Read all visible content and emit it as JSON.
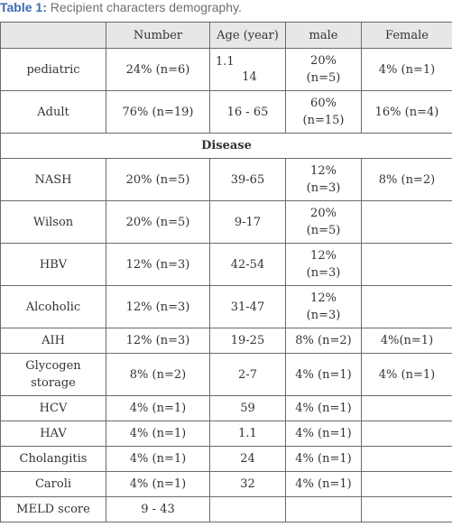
{
  "caption": {
    "label": "Table 1:",
    "text": " Recipient characters demography."
  },
  "header": [
    "",
    "Number",
    "Age (year)",
    "male",
    "Female"
  ],
  "group_rows": [
    {
      "label": "pediatric",
      "number": "24% (n=6)",
      "age1": "1.1",
      "age2": "14",
      "male": "20%\n(n=5)",
      "female": "4% (n=1)"
    },
    {
      "label": "Adult",
      "number": "76% (n=19)",
      "age": "16 - 65",
      "male": "60%\n(n=15)",
      "female": "16% (n=4)"
    }
  ],
  "disease_label": "Disease",
  "disease_rows": [
    {
      "label": "NASH",
      "number": "20% (n=5)",
      "age": "39-65",
      "male": "12%\n(n=3)",
      "female": "8% (n=2)"
    },
    {
      "label": "Wilson",
      "number": "20% (n=5)",
      "age": "9-17",
      "male": "20%\n(n=5)",
      "female": ""
    },
    {
      "label": "HBV",
      "number": "12% (n=3)",
      "age": "42-54",
      "male": "12%\n(n=3)",
      "female": ""
    },
    {
      "label": "Alcoholic",
      "number": "12% (n=3)",
      "age": "31-47",
      "male": "12%\n(n=3)",
      "female": ""
    },
    {
      "label": "AIH",
      "number": "12% (n=3)",
      "age": "19-25",
      "male": "8% (n=2)",
      "female": "4%(n=1)"
    },
    {
      "label": "Glycogen\nstorage",
      "number": "8% (n=2)",
      "age": "2-7",
      "male": "4% (n=1)",
      "female": "4% (n=1)"
    },
    {
      "label": "HCV",
      "number": "4% (n=1)",
      "age": "59",
      "male": "4% (n=1)",
      "female": ""
    },
    {
      "label": "HAV",
      "number": "4% (n=1)",
      "age": "1.1",
      "male": "4% (n=1)",
      "female": ""
    },
    {
      "label": "Cholangitis",
      "number": "4% (n=1)",
      "age": "24",
      "male": "4% (n=1)",
      "female": ""
    },
    {
      "label": "Caroli",
      "number": "4% (n=1)",
      "age": "32",
      "male": "4% (n=1)",
      "female": ""
    }
  ],
  "meld": {
    "label": "MELD score",
    "number": "9 - 43"
  }
}
